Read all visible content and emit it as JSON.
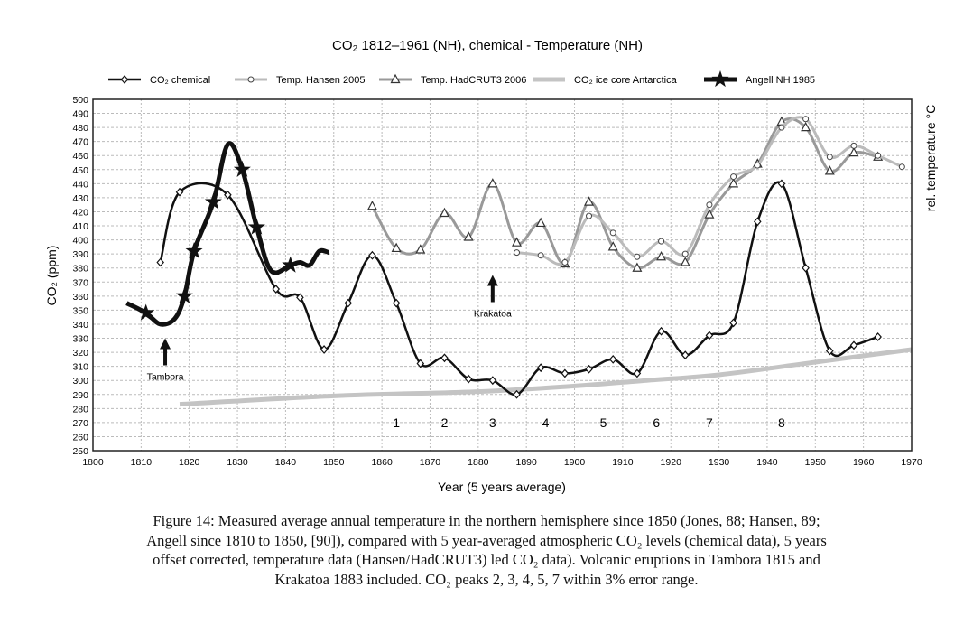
{
  "chart_data": {
    "type": "line",
    "title": "CO₂ 1812–1961 (NH), chemical - Temperature (NH)",
    "xlabel": "Year (5 years average)",
    "ylabel": "CO₂ (ppm)",
    "ylabel_right": "rel. temperature °C",
    "xlim": [
      1800,
      1970
    ],
    "ylim": [
      250,
      500
    ],
    "xticks": [
      1800,
      1810,
      1820,
      1830,
      1840,
      1850,
      1860,
      1870,
      1880,
      1890,
      1900,
      1910,
      1920,
      1930,
      1940,
      1950,
      1960,
      1970
    ],
    "yticks": [
      250,
      260,
      270,
      280,
      290,
      300,
      310,
      320,
      330,
      340,
      350,
      360,
      370,
      380,
      390,
      400,
      410,
      420,
      430,
      440,
      450,
      460,
      470,
      480,
      490,
      500
    ],
    "grid": true,
    "legend_position": "top",
    "series": [
      {
        "name": "CO₂ chemical",
        "color": "#111111",
        "marker": "diamond",
        "points": [
          [
            1814,
            384
          ],
          [
            1818,
            434
          ],
          [
            1828,
            432
          ],
          [
            1838,
            365
          ],
          [
            1843,
            359
          ],
          [
            1848,
            322
          ],
          [
            1853,
            355
          ],
          [
            1858,
            389
          ],
          [
            1863,
            355
          ],
          [
            1868,
            312
          ],
          [
            1873,
            316
          ],
          [
            1878,
            301
          ],
          [
            1883,
            300
          ],
          [
            1888,
            290
          ],
          [
            1893,
            309
          ],
          [
            1898,
            305
          ],
          [
            1903,
            308
          ],
          [
            1908,
            315
          ],
          [
            1913,
            305
          ],
          [
            1918,
            335
          ],
          [
            1923,
            318
          ],
          [
            1928,
            332
          ],
          [
            1933,
            341
          ],
          [
            1938,
            413
          ],
          [
            1943,
            440
          ],
          [
            1948,
            380
          ],
          [
            1953,
            321
          ],
          [
            1958,
            325
          ],
          [
            1963,
            331
          ]
        ]
      },
      {
        "name": "Temp. Hansen 2005",
        "color": "#bbbbbb",
        "marker": "circle",
        "points": [
          [
            1888,
            391
          ],
          [
            1893,
            389
          ],
          [
            1898,
            384
          ],
          [
            1903,
            417
          ],
          [
            1908,
            405
          ],
          [
            1913,
            388
          ],
          [
            1918,
            399
          ],
          [
            1923,
            390
          ],
          [
            1928,
            425
          ],
          [
            1933,
            445
          ],
          [
            1938,
            453
          ],
          [
            1943,
            480
          ],
          [
            1948,
            486
          ],
          [
            1953,
            459
          ],
          [
            1958,
            467
          ],
          [
            1963,
            460
          ],
          [
            1968,
            452
          ]
        ]
      },
      {
        "name": "Temp. HadCRUT3 2006",
        "color": "#999999",
        "marker": "triangle",
        "points": [
          [
            1858,
            424
          ],
          [
            1863,
            394
          ],
          [
            1868,
            393
          ],
          [
            1873,
            419
          ],
          [
            1878,
            402
          ],
          [
            1883,
            440
          ],
          [
            1888,
            398
          ],
          [
            1893,
            412
          ],
          [
            1898,
            383
          ],
          [
            1903,
            427
          ],
          [
            1908,
            395
          ],
          [
            1913,
            380
          ],
          [
            1918,
            388
          ],
          [
            1923,
            384
          ],
          [
            1928,
            418
          ],
          [
            1933,
            440
          ],
          [
            1938,
            454
          ],
          [
            1943,
            484
          ],
          [
            1948,
            480
          ],
          [
            1953,
            449
          ],
          [
            1958,
            462
          ],
          [
            1963,
            459
          ]
        ]
      },
      {
        "name": "CO₂ ice core Antarctica",
        "color": "#c4c4c4",
        "marker": "none",
        "points": [
          [
            1818,
            283
          ],
          [
            1850,
            289
          ],
          [
            1880,
            292
          ],
          [
            1900,
            296
          ],
          [
            1915,
            300
          ],
          [
            1930,
            304
          ],
          [
            1950,
            313
          ],
          [
            1970,
            322
          ]
        ]
      },
      {
        "name": "Angell NH 1985",
        "color": "#111111",
        "marker": "star",
        "points": [
          [
            1807,
            355
          ],
          [
            1811,
            348
          ],
          [
            1814,
            340
          ],
          [
            1817,
            344
          ],
          [
            1819,
            360
          ],
          [
            1821,
            392
          ],
          [
            1825,
            427
          ],
          [
            1828,
            468
          ],
          [
            1831,
            450
          ],
          [
            1834,
            409
          ],
          [
            1837,
            378
          ],
          [
            1841,
            382
          ],
          [
            1843,
            384
          ],
          [
            1845,
            382
          ],
          [
            1847,
            392
          ],
          [
            1849,
            391
          ]
        ],
        "star_points": [
          [
            1811,
            348
          ],
          [
            1819,
            360
          ],
          [
            1821,
            392
          ],
          [
            1825,
            427
          ],
          [
            1831,
            450
          ],
          [
            1834,
            409
          ],
          [
            1841,
            382
          ]
        ]
      }
    ],
    "annotations": [
      {
        "text": "Tambora",
        "x": 1815,
        "y": 330
      },
      {
        "text": "Krakatoa",
        "x": 1883,
        "y": 375
      },
      {
        "text": "1",
        "x": 1863,
        "y": 270
      },
      {
        "text": "2",
        "x": 1873,
        "y": 270
      },
      {
        "text": "3",
        "x": 1883,
        "y": 270
      },
      {
        "text": "4",
        "x": 1894,
        "y": 270
      },
      {
        "text": "5",
        "x": 1906,
        "y": 270
      },
      {
        "text": "6",
        "x": 1917,
        "y": 270
      },
      {
        "text": "7",
        "x": 1928,
        "y": 270
      },
      {
        "text": "8",
        "x": 1943,
        "y": 270
      }
    ]
  },
  "caption": [
    "Figure 14: Measured average annual temperature in the northern hemisphere since 1850 (Jones, 88; Hansen, 89;",
    "Angell since 1810 to 1850, [90]), compared with 5 year-averaged atmospheric CO₂ levels (chemical data), 5 years",
    "offset corrected, temperature data (Hansen/HadCRUT3) led CO₂ data). Volcanic eruptions in Tambora 1815 and",
    "Krakatoa 1883 included. CO₂ peaks 2, 3, 4, 5, 7 within 3% error range."
  ]
}
